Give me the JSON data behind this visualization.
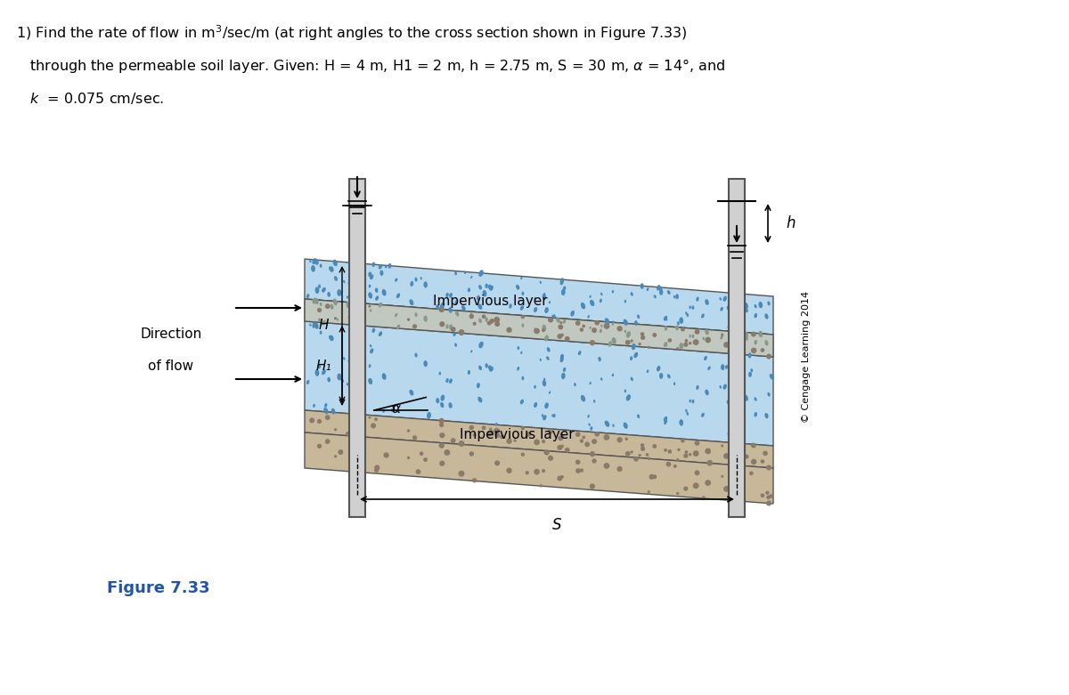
{
  "title_text": "1) Find the rate of flow in m³/sec/m (at right angles to the cross section shown in Figure 7.33)\n   through the permeable soil layer. Given: H = 4 m, H1 = 2 m, h = 2.75 m, S = 30 m, α = 14°, and\n   k  = 0.075 cm/sec.",
  "figure_label": "Figure 7.33",
  "copyright": "© Cengage Learning 2014",
  "bg_color": "#ffffff",
  "soil_color_upper": "#a8c8e8",
  "soil_color_lower": "#b8d4e8",
  "impervious_color": "#c8b89a",
  "impervious_upper_label": "Impervious layer",
  "impervious_lower_label": "Impervious layer",
  "H_label": "H",
  "H1_label": "H₁",
  "h_label": "h",
  "S_label": "S",
  "alpha_label": "α",
  "direction_label": "Direction\nof flow"
}
